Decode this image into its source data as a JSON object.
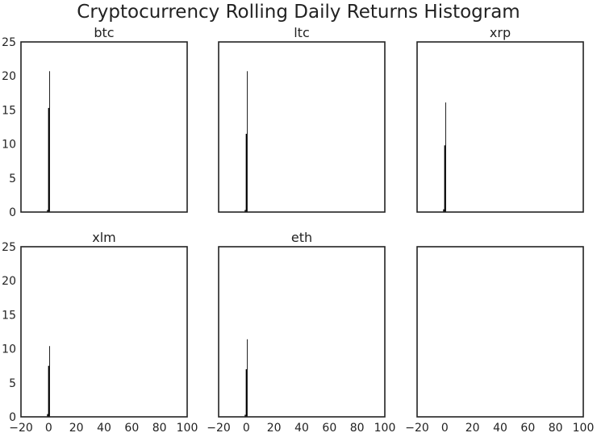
{
  "chart_data": {
    "type": "bar",
    "title": "Cryptocurrency Rolling Daily Returns Histogram",
    "xlim": [
      -20,
      100
    ],
    "ylim": [
      0,
      25
    ],
    "x_ticks": [
      "−20",
      "0",
      "20",
      "40",
      "60",
      "80",
      "100"
    ],
    "y_ticks": [
      "0",
      "5",
      "10",
      "15",
      "20",
      "25"
    ],
    "grid": false,
    "subplots": [
      {
        "title": "btc",
        "bins": [
          {
            "x0": -1.2,
            "x1": -0.4,
            "y": 0.3
          },
          {
            "x0": -0.4,
            "x1": 0.4,
            "y": 15.3
          },
          {
            "x0": 0.4,
            "x1": 0.9,
            "y": 20.7
          }
        ]
      },
      {
        "title": "ltc",
        "bins": [
          {
            "x0": -1.2,
            "x1": -0.4,
            "y": 0.3
          },
          {
            "x0": -0.4,
            "x1": 0.4,
            "y": 11.5
          },
          {
            "x0": 0.4,
            "x1": 0.9,
            "y": 20.7
          }
        ]
      },
      {
        "title": "xrp",
        "bins": [
          {
            "x0": -1.2,
            "x1": -0.4,
            "y": 0.4
          },
          {
            "x0": -0.4,
            "x1": 0.4,
            "y": 9.8
          },
          {
            "x0": 0.4,
            "x1": 0.9,
            "y": 16.1
          }
        ]
      },
      {
        "title": "xlm",
        "bins": [
          {
            "x0": -1.2,
            "x1": -0.4,
            "y": 0.4
          },
          {
            "x0": -0.4,
            "x1": 0.4,
            "y": 7.5
          },
          {
            "x0": 0.4,
            "x1": 0.9,
            "y": 10.4
          }
        ]
      },
      {
        "title": "eth",
        "bins": [
          {
            "x0": -1.2,
            "x1": -0.4,
            "y": 0.3
          },
          {
            "x0": -0.4,
            "x1": 0.4,
            "y": 7.0
          },
          {
            "x0": 0.4,
            "x1": 0.9,
            "y": 11.4
          }
        ]
      },
      {
        "title": "",
        "bins": []
      }
    ]
  }
}
